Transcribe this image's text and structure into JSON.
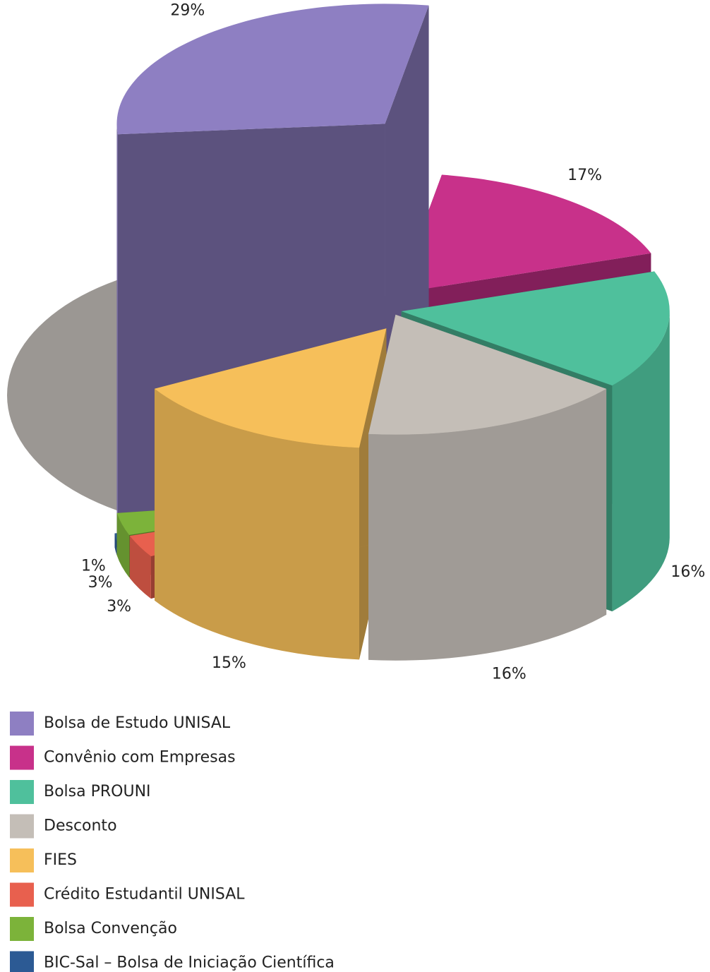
{
  "chart_data": {
    "type": "pie3d",
    "categories": [
      "Bolsa de Estudo UNISAL",
      "Convênio com Empresas",
      "Bolsa PROUNI",
      "Desconto",
      "FIES",
      "Crédito Estudantil UNISAL",
      "Bolsa Convenção",
      "BIC-Sal – Bolsa de Iniciação Científica"
    ],
    "values": [
      29,
      17,
      16,
      16,
      15,
      3,
      3,
      1
    ],
    "value_labels": [
      "29%",
      "17%",
      "16%",
      "16%",
      "15%",
      "3%",
      "3%",
      "1%"
    ],
    "colors": [
      "#8e7fc2",
      "#c8318a",
      "#4fc09c",
      "#c4beb7",
      "#f6bf5a",
      "#e8604e",
      "#7cb33a",
      "#2c5a94"
    ]
  }
}
